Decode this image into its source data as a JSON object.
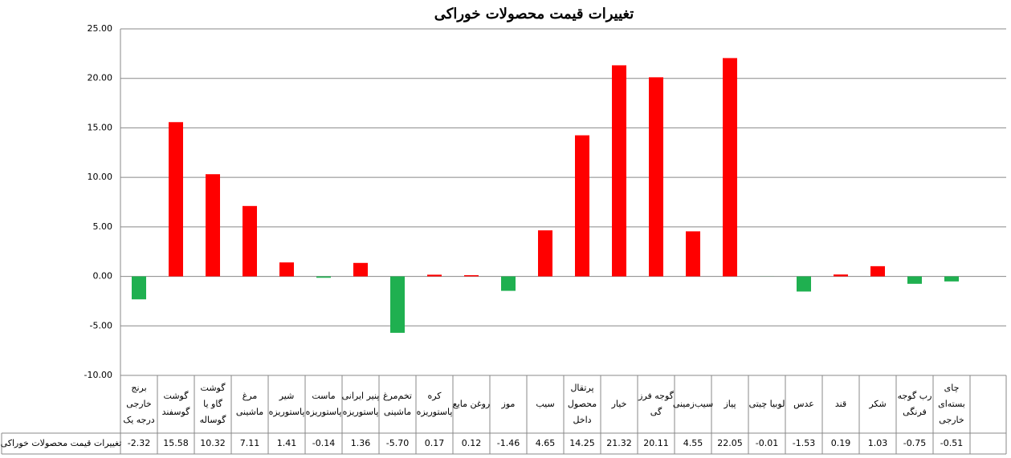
{
  "chart_data": {
    "type": "bar",
    "title": "تغییرات قیمت محصولات خوراکی",
    "categories": [
      [
        "برنج",
        "خارجی",
        "درجه یک"
      ],
      [
        "گوشت",
        "گوسفند"
      ],
      [
        "گوشت",
        "گاو یا",
        "گوساله"
      ],
      [
        "مرغ",
        "ماشینی"
      ],
      [
        "شیر",
        "پاستوریزه"
      ],
      [
        "ماست",
        "پاستوریزه"
      ],
      [
        "پنیر ایرانی",
        "پاستوریزه"
      ],
      [
        "تخم‌مرغ",
        "ماشینی"
      ],
      [
        "کره",
        "پاستوریزه"
      ],
      [
        "روغن مایع"
      ],
      [
        "موز"
      ],
      [
        "سیب"
      ],
      [
        "پرتقال",
        "محصول",
        "داخل"
      ],
      [
        "خیار"
      ],
      [
        "گوجه فرز",
        "گی"
      ],
      [
        "سیب‌زمینی"
      ],
      [
        "پیاز"
      ],
      [
        "لوبیا چیتی"
      ],
      [
        "عدس"
      ],
      [
        "قند"
      ],
      [
        "شکر"
      ],
      [
        "رب گوجه",
        "فرنگی"
      ],
      [
        "چای",
        "بسته‌ای",
        "خارجی"
      ]
    ],
    "series": [
      {
        "name": "تغییرات قیمت محصولات خوراکی",
        "values": [
          -2.32,
          15.58,
          10.32,
          7.11,
          1.41,
          -0.14,
          1.36,
          -5.7,
          0.17,
          0.12,
          -1.46,
          4.65,
          14.25,
          21.32,
          20.11,
          4.55,
          22.05,
          -0.01,
          -1.53,
          0.19,
          1.03,
          -0.75,
          -0.51
        ],
        "value_labels": [
          "-2.32",
          "15.58",
          "10.32",
          "7.11",
          "1.41",
          "-0.14",
          "1.36",
          "-5.70",
          "0.17",
          "0.12",
          "-1.46",
          "4.65",
          "14.25",
          "21.32",
          "20.11",
          "4.55",
          "22.05",
          "-0.01",
          "-1.53",
          "0.19",
          "1.03",
          "-0.75",
          "-0.51"
        ]
      }
    ],
    "positive_color": "#ff0000",
    "negative_color": "#1fb050",
    "ylim": [
      -10,
      25
    ],
    "yticks": [
      {
        "value": -10,
        "label": "-10.00"
      },
      {
        "value": -5,
        "label": "-5.00"
      },
      {
        "value": 0,
        "label": "0.00"
      },
      {
        "value": 5,
        "label": "5.00"
      },
      {
        "value": 10,
        "label": "10.00"
      },
      {
        "value": 15,
        "label": "15.00"
      },
      {
        "value": 20,
        "label": "20.00"
      },
      {
        "value": 25,
        "label": "25.00"
      }
    ],
    "grid": true
  }
}
